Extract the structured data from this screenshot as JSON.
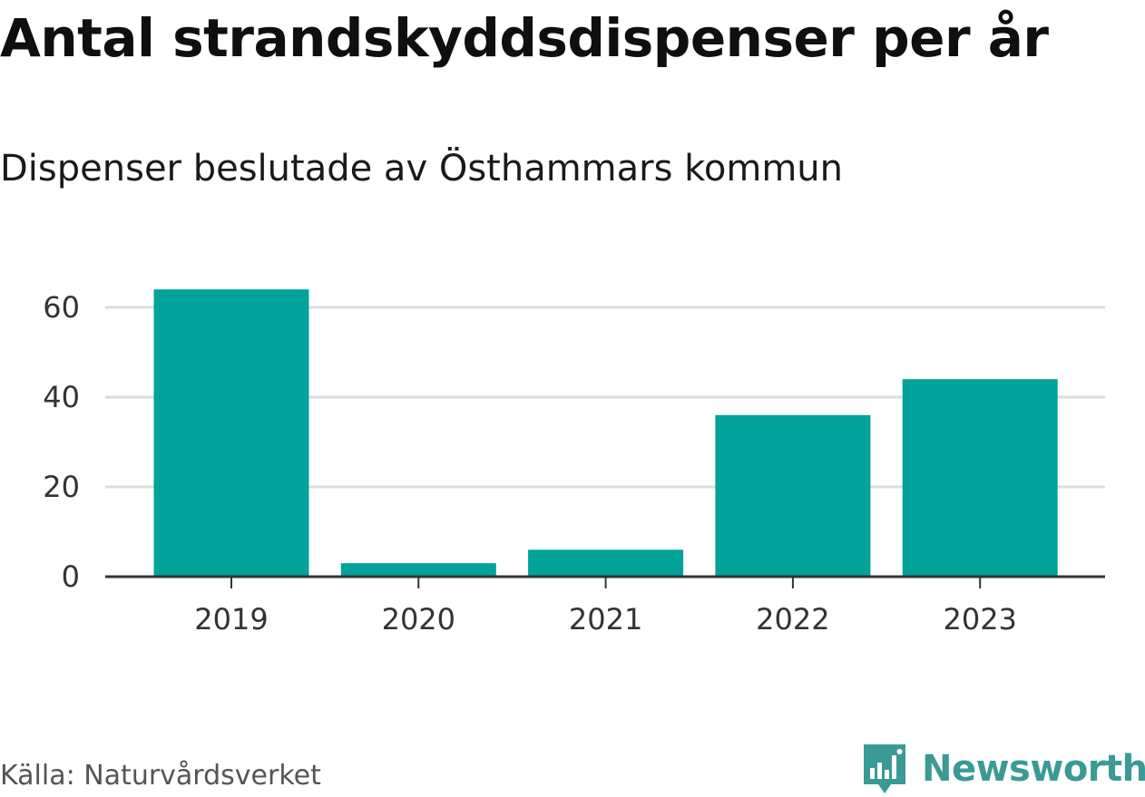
{
  "title": "Antal strandskyddsdispenser per år",
  "subtitle": "Dispenser beslutade av Östhammars kommun",
  "source": "Källa: Naturvårdsverket",
  "brand": {
    "name": "Newsworthy",
    "icon": "newsworthy-logo-icon",
    "color": "#3a9a96"
  },
  "colors": {
    "bar": "#00a29a",
    "grid": "#dddddd",
    "axis": "#333333"
  },
  "chart_data": {
    "type": "bar",
    "title": "Antal strandskyddsdispenser per år",
    "subtitle": "Dispenser beslutade av Östhammars kommun",
    "xlabel": "",
    "ylabel": "",
    "categories": [
      "2019",
      "2020",
      "2021",
      "2022",
      "2023"
    ],
    "values": [
      64,
      3,
      6,
      36,
      44
    ],
    "ylim": [
      0,
      70
    ],
    "yticks": [
      0,
      20,
      40,
      60
    ],
    "grid": true,
    "legend": "none"
  }
}
